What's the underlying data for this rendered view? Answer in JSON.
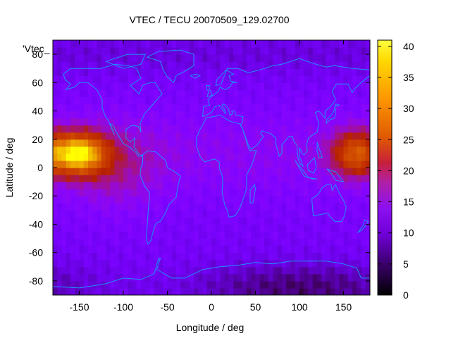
{
  "chart_data": {
    "type": "heatmap",
    "title": "VTEC / TECU 20070509_129.02700",
    "xlabel": "Longitude / deg",
    "ylabel": "Latitude / deg",
    "key_label": "'Vtec_",
    "xlim": [
      -180,
      180
    ],
    "ylim": [
      -90,
      90
    ],
    "xticks": [
      -150,
      -100,
      -50,
      0,
      50,
      100,
      150
    ],
    "yticks": [
      -80,
      -60,
      -40,
      -20,
      0,
      20,
      40,
      60,
      80
    ],
    "colorbar": {
      "range": [
        0,
        41
      ],
      "ticks": [
        0,
        5,
        10,
        15,
        20,
        25,
        30,
        35,
        40
      ]
    },
    "grid": false,
    "features": [
      {
        "name": "peak-west",
        "lon": -150,
        "lat": 10,
        "value": 38
      },
      {
        "name": "peak-east",
        "lon": 165,
        "lat": 10,
        "value": 28
      },
      {
        "name": "minimum-south",
        "lon": 100,
        "lat": -85,
        "value": 2
      }
    ],
    "overlay": "coastlines",
    "overlay_color": "#1e90ff"
  }
}
